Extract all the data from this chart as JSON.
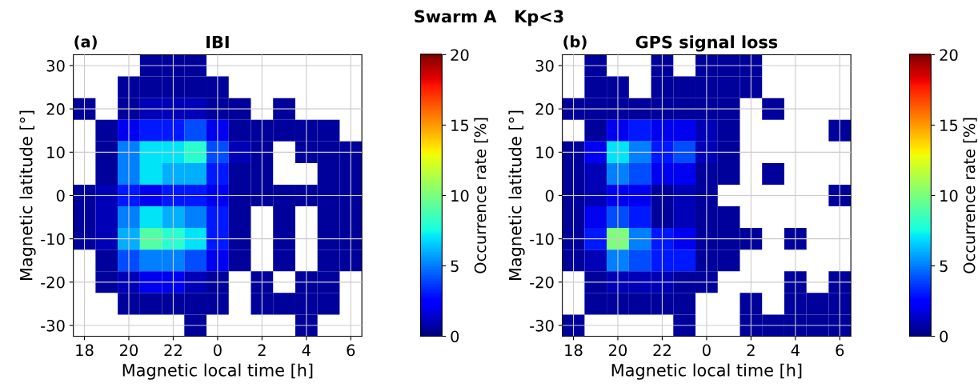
{
  "chart_data": [
    {
      "type": "heatmap",
      "title": "IBI",
      "xlabel": "Magnetic local time [h]",
      "ylabel": "Magnetic latitude [°]",
      "clabel": "Occurrence rate [%]",
      "annotations": [
        "Swarm A   Kp<3",
        "(a)"
      ],
      "categories": [
        "18",
        null,
        "20",
        null,
        "22",
        null,
        "0",
        null,
        "2",
        null,
        "4",
        null,
        "6"
      ],
      "y_categories": [
        "30",
        null,
        "20",
        null,
        "10",
        null,
        "0",
        null,
        "-10",
        null,
        "-20",
        null,
        "-30"
      ],
      "clim": [
        0,
        20
      ],
      "cticks": [
        0,
        5,
        10,
        15,
        20
      ],
      "grid": true,
      "cells": [
        [
          null,
          null,
          null,
          0.5,
          0.5,
          0.5,
          null,
          null,
          null,
          null,
          null,
          null,
          null
        ],
        [
          null,
          null,
          0.5,
          0.5,
          0.5,
          0.5,
          0.5,
          null,
          null,
          null,
          null,
          null,
          null
        ],
        [
          0.5,
          null,
          0.5,
          1,
          1,
          1,
          0.5,
          0.5,
          null,
          0.5,
          null,
          null,
          null
        ],
        [
          null,
          0.5,
          2,
          3,
          3,
          4,
          2,
          0.5,
          0.5,
          0.5,
          0.5,
          0.5,
          null
        ],
        [
          null,
          0.5,
          5,
          7,
          7,
          8,
          4,
          1,
          0.5,
          null,
          0.5,
          0.5,
          0.5
        ],
        [
          null,
          0.5,
          5,
          7,
          6,
          6,
          3,
          0.5,
          0.5,
          null,
          null,
          0.5,
          0.5
        ],
        [
          0.5,
          1,
          3,
          2,
          3,
          3,
          2,
          0.5,
          0.5,
          0.5,
          0.5,
          0.5,
          0.5
        ],
        [
          0.5,
          1,
          5,
          7,
          6,
          5,
          3,
          0.5,
          null,
          0.5,
          null,
          0.5,
          0.5
        ],
        [
          0.5,
          1,
          6,
          9,
          8,
          7,
          3,
          0.5,
          null,
          0.5,
          null,
          0.5,
          0.5
        ],
        [
          null,
          0.5,
          4,
          5,
          5,
          4,
          2,
          0.5,
          null,
          0.5,
          null,
          0.5,
          0.5
        ],
        [
          null,
          0.5,
          1,
          2,
          2,
          1,
          0.5,
          null,
          0.5,
          null,
          0.5,
          0.5,
          null
        ],
        [
          null,
          null,
          0.5,
          0.5,
          0.5,
          0.5,
          0.5,
          null,
          0.5,
          0.5,
          0.5,
          0.5,
          null
        ],
        [
          null,
          null,
          null,
          null,
          null,
          0.5,
          null,
          null,
          null,
          null,
          0.5,
          null,
          null
        ]
      ]
    },
    {
      "type": "heatmap",
      "title": "GPS signal loss",
      "xlabel": "Magnetic local time [h]",
      "ylabel": "Magnetic latitude [°]",
      "clabel": "Occurrence rate [%]",
      "annotations": [
        "(b)"
      ],
      "categories": [
        "18",
        null,
        "20",
        null,
        "22",
        null,
        "0",
        null,
        "2",
        null,
        "4",
        null,
        "6"
      ],
      "y_categories": [
        "30",
        null,
        "20",
        null,
        "10",
        null,
        "0",
        null,
        "-10",
        null,
        "-20",
        null,
        "-30"
      ],
      "clim": [
        0,
        20
      ],
      "cticks": [
        0,
        5,
        10,
        15,
        20
      ],
      "grid": true,
      "cells": [
        [
          null,
          0.5,
          null,
          null,
          0.5,
          null,
          0.5,
          0.5,
          0.5,
          null,
          null,
          null,
          null
        ],
        [
          null,
          0.5,
          0.5,
          null,
          0.5,
          0.5,
          0.5,
          0.5,
          0.5,
          null,
          null,
          null,
          null
        ],
        [
          0.5,
          0.5,
          0.5,
          0.5,
          0.5,
          0.5,
          0.5,
          0.5,
          null,
          0.5,
          null,
          null,
          null
        ],
        [
          null,
          0.5,
          2,
          3,
          2,
          2,
          1,
          0.5,
          null,
          null,
          null,
          null,
          0.5
        ],
        [
          0.5,
          2,
          7,
          5,
          3,
          4,
          1,
          0.5,
          null,
          null,
          null,
          null,
          null
        ],
        [
          0.5,
          1,
          5,
          4,
          2,
          2,
          0.5,
          0.5,
          null,
          0.5,
          null,
          null,
          null
        ],
        [
          0.5,
          1,
          2,
          2,
          0.5,
          1,
          0.5,
          null,
          null,
          null,
          null,
          null,
          0.5
        ],
        [
          0.5,
          2,
          4,
          3,
          0.5,
          1,
          0.5,
          0.5,
          null,
          null,
          null,
          null,
          null
        ],
        [
          0.5,
          3,
          10,
          5,
          3,
          2,
          0.5,
          0.5,
          0.5,
          null,
          0.5,
          null,
          null
        ],
        [
          0.5,
          1,
          5,
          4,
          3,
          3,
          0.5,
          0.5,
          null,
          null,
          null,
          null,
          null
        ],
        [
          null,
          0.5,
          1,
          1,
          1,
          0.5,
          0.5,
          null,
          null,
          null,
          0.5,
          null,
          0.5
        ],
        [
          null,
          0.5,
          0.5,
          0.5,
          0.5,
          0.5,
          null,
          null,
          0.5,
          null,
          0.5,
          0.5,
          0.5
        ],
        [
          0.5,
          null,
          null,
          null,
          null,
          0.5,
          null,
          null,
          0.5,
          0.5,
          0.5,
          0.5,
          0.5
        ]
      ]
    }
  ]
}
